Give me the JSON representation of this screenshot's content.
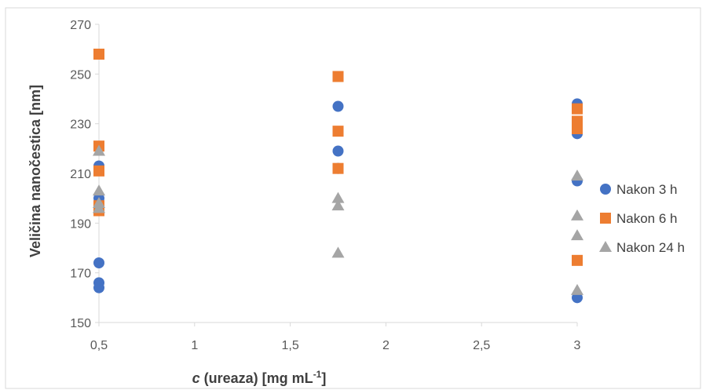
{
  "chart_data": {
    "type": "scatter",
    "xlabel": "c (ureaza) [mg mL-1]",
    "xlabel_parts": {
      "italic": "c",
      "main": " (ureaza) [mg mL",
      "sup": "-1",
      "end": "]"
    },
    "ylabel": "Veličina nanočestica [nm]",
    "xlim": [
      0.5,
      3
    ],
    "ylim": [
      150,
      270
    ],
    "x_ticks": [
      0.5,
      1,
      1.5,
      2,
      2.5,
      3
    ],
    "x_tick_labels": [
      "0,5",
      "1",
      "1,5",
      "2",
      "2,5",
      "3"
    ],
    "y_ticks": [
      150,
      170,
      190,
      210,
      230,
      250,
      270
    ],
    "y_tick_labels": [
      "150",
      "170",
      "190",
      "210",
      "230",
      "250",
      "270"
    ],
    "grid": false,
    "legend_position": "right",
    "series": [
      {
        "name": "Nakon 3 h",
        "marker": "circle",
        "color": "#4472C4",
        "points": [
          [
            0.5,
            213
          ],
          [
            0.5,
            200
          ],
          [
            0.5,
            174
          ],
          [
            0.5,
            166
          ],
          [
            0.5,
            164
          ],
          [
            1.75,
            237
          ],
          [
            1.75,
            219
          ],
          [
            1.75,
            212
          ],
          [
            3,
            238
          ],
          [
            3,
            226
          ],
          [
            3,
            207
          ],
          [
            3,
            160
          ]
        ]
      },
      {
        "name": "Nakon 6 h",
        "marker": "square",
        "color": "#ED7D31",
        "points": [
          [
            0.5,
            258
          ],
          [
            0.5,
            221
          ],
          [
            0.5,
            211
          ],
          [
            0.5,
            197
          ],
          [
            0.5,
            195
          ],
          [
            1.75,
            249
          ],
          [
            1.75,
            227
          ],
          [
            1.75,
            212
          ],
          [
            3,
            236
          ],
          [
            3,
            231
          ],
          [
            3,
            228
          ],
          [
            3,
            175
          ]
        ]
      },
      {
        "name": "Nakon 24 h",
        "marker": "triangle",
        "color": "#A5A5A5",
        "points": [
          [
            0.5,
            219
          ],
          [
            0.5,
            203
          ],
          [
            0.5,
            198
          ],
          [
            0.5,
            196
          ],
          [
            1.75,
            200
          ],
          [
            1.75,
            197
          ],
          [
            1.75,
            178
          ],
          [
            3,
            209
          ],
          [
            3,
            193
          ],
          [
            3,
            185
          ],
          [
            3,
            163
          ]
        ]
      }
    ]
  }
}
